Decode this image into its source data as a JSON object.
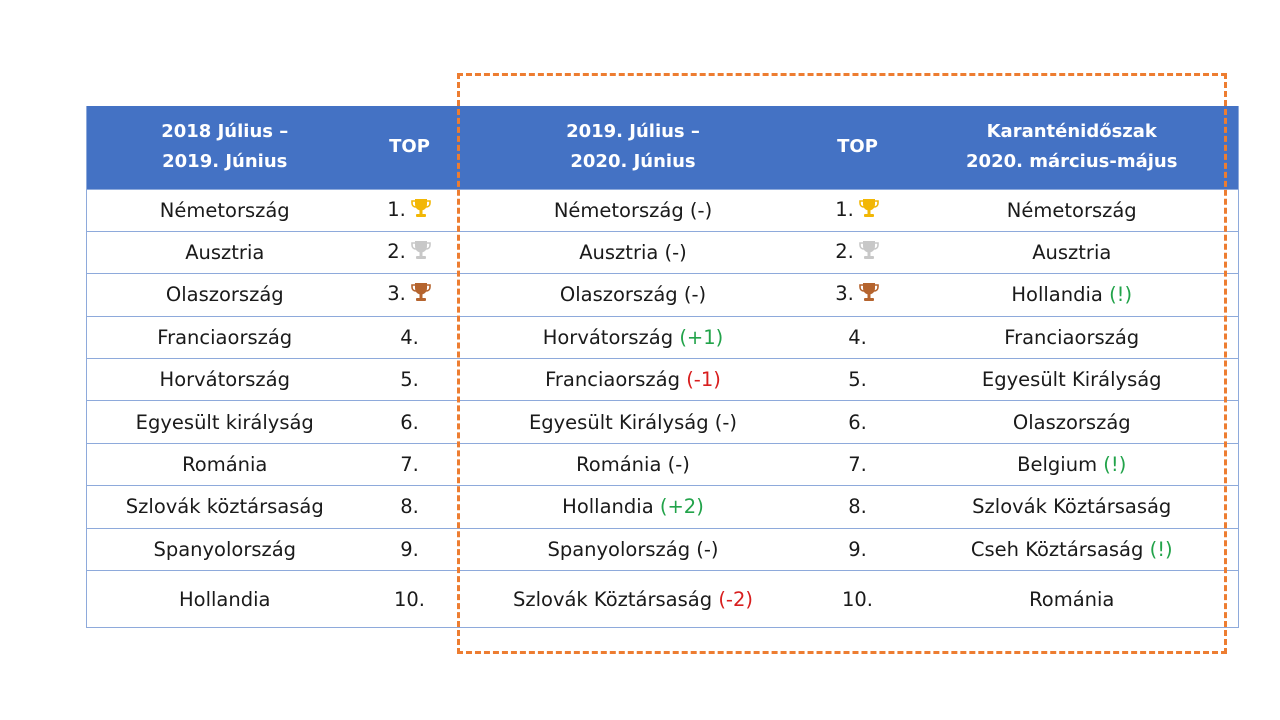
{
  "table": {
    "headers": {
      "period1": [
        "2018 Július –",
        "2019. Június"
      ],
      "top1": "TOP",
      "period2": [
        "2019. Július –",
        "2020. Június"
      ],
      "top2": "TOP",
      "period3": [
        "Karanténidőszak",
        "2020. március-május"
      ]
    },
    "rows": [
      {
        "p1": "Németország",
        "r1": "1.",
        "p2": "Németország",
        "p2_change": "(-)",
        "r2": "1.",
        "p3": "Németország",
        "trophy": "gold-trophy-icon"
      },
      {
        "p1": "Ausztria",
        "r1": "2.",
        "p2": "Ausztria",
        "p2_change": "(-)",
        "r2": "2.",
        "p3": "Ausztria",
        "trophy": "silver-trophy-icon"
      },
      {
        "p1": "Olaszország",
        "r1": "3.",
        "p2": "Olaszország",
        "p2_change": "(-)",
        "r2": "3.",
        "p3": "Hollandia",
        "p3_note": "(!)",
        "trophy": "bronze-trophy-icon"
      },
      {
        "p1": "Franciaország",
        "r1": "4.",
        "p2": "Horvátország",
        "p2_change": "(+1)",
        "r2": "4.",
        "p3": "Franciaország"
      },
      {
        "p1": "Horvátország",
        "r1": "5.",
        "p2": "Franciaország",
        "p2_change": "(-1)",
        "r2": "5.",
        "p3": "Egyesült Királyság"
      },
      {
        "p1": "Egyesült királyság",
        "r1": "6.",
        "p2": "Egyesült Királyság",
        "p2_change": "(-)",
        "r2": "6.",
        "p3": "Olaszország"
      },
      {
        "p1": "Románia",
        "r1": "7.",
        "p2": "Románia",
        "p2_change": "(-)",
        "r2": "7.",
        "p3": "Belgium",
        "p3_note": "(!)"
      },
      {
        "p1": "Szlovák köztársaság",
        "r1": "8.",
        "p2": "Hollandia",
        "p2_change": "(+2)",
        "r2": "8.",
        "p3": "Szlovák Köztársaság"
      },
      {
        "p1": "Spanyolország",
        "r1": "9.",
        "p2": "Spanyolország",
        "p2_change": "(-)",
        "r2": "9.",
        "p3": "Cseh Köztársaság",
        "p3_note": "(!)"
      },
      {
        "p1": "Hollandia",
        "r1": "10.",
        "p2": "Szlovák Köztársaság",
        "p2_change": "(-2)",
        "r2": "10.",
        "p3": "Románia"
      }
    ]
  },
  "colors": {
    "header_bg": "#4472c4",
    "border": "#8eaadb",
    "highlight_dash": "#ed7d31",
    "positive": "#22a34a",
    "negative": "#d81e1e",
    "gold": "#f2b705",
    "silver": "#c8c8c8",
    "bronze": "#b5642e"
  }
}
